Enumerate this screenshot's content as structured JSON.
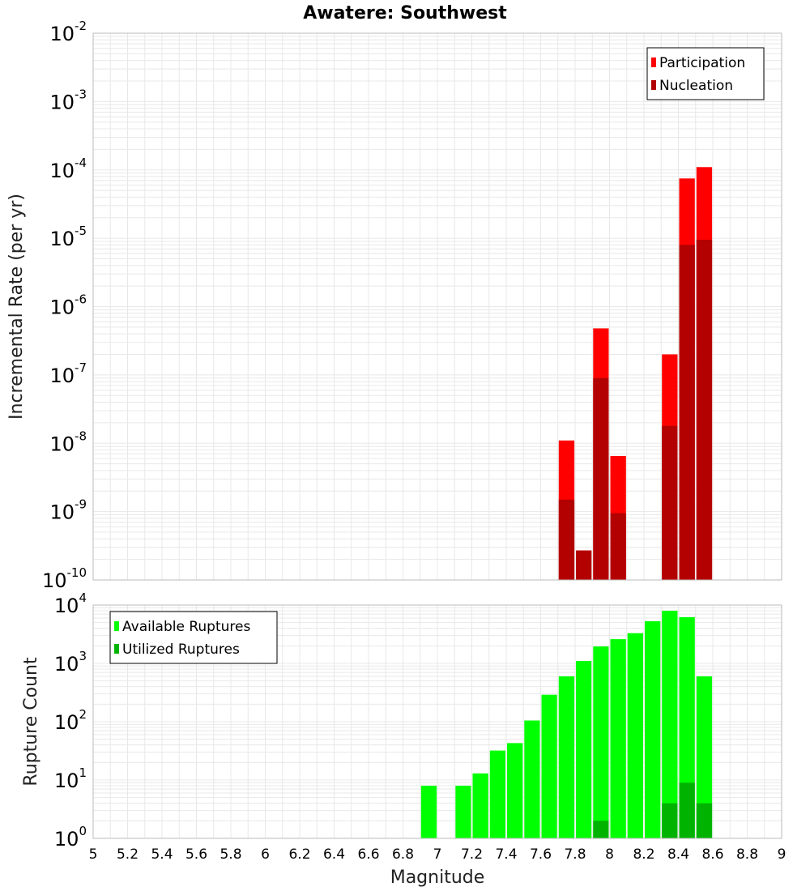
{
  "title": "Awatere: Southwest",
  "colors": {
    "participation": "#ff0000",
    "nucleation": "#b30000",
    "available": "#00ff00",
    "utilized": "#00b300",
    "grid": "#e8e8e8",
    "frame": "#bbbbbb"
  },
  "chart_data": [
    {
      "type": "bar",
      "scale": "log",
      "ylabel": "Incremental Rate (per yr)",
      "xlabel": "",
      "xlim": [
        5,
        9
      ],
      "ylim_exp": [
        -10,
        -2
      ],
      "y_ticks": [
        {
          "base": "10",
          "exp": "-2"
        },
        {
          "base": "10",
          "exp": "-3"
        },
        {
          "base": "10",
          "exp": "-4"
        },
        {
          "base": "10",
          "exp": "-5"
        },
        {
          "base": "10",
          "exp": "-6"
        },
        {
          "base": "10",
          "exp": "-7"
        },
        {
          "base": "10",
          "exp": "-8"
        },
        {
          "base": "10",
          "exp": "-9"
        },
        {
          "base": "10",
          "exp": "-10"
        }
      ],
      "legend": {
        "position": "top-right",
        "entries": [
          "Participation",
          "Nucleation"
        ]
      },
      "bar_width": 0.1,
      "series": [
        {
          "name": "Participation",
          "x": [
            7.75,
            7.85,
            7.95,
            8.05,
            8.35,
            8.45,
            8.55
          ],
          "values": [
            1.1e-08,
            2.7e-10,
            4.8e-07,
            6.5e-09,
            2e-07,
            7.5e-05,
            0.00011
          ]
        },
        {
          "name": "Nucleation",
          "x": [
            7.75,
            7.85,
            7.95,
            8.05,
            8.35,
            8.45,
            8.55
          ],
          "values": [
            1.5e-09,
            2.7e-10,
            9e-08,
            9.5e-10,
            1.8e-08,
            8e-06,
            9.5e-06
          ]
        }
      ]
    },
    {
      "type": "bar",
      "scale": "log",
      "ylabel": "Rupture Count",
      "xlabel": "Magnitude",
      "xlim": [
        5,
        9
      ],
      "ylim_exp": [
        0,
        4
      ],
      "x_ticks": [
        "5",
        "5.2",
        "5.4",
        "5.6",
        "5.8",
        "6",
        "6.2",
        "6.4",
        "6.6",
        "6.8",
        "7",
        "7.2",
        "7.4",
        "7.6",
        "7.8",
        "8",
        "8.2",
        "8.4",
        "8.6",
        "8.8",
        "9"
      ],
      "y_ticks": [
        {
          "base": "10",
          "exp": "4"
        },
        {
          "base": "10",
          "exp": "3"
        },
        {
          "base": "10",
          "exp": "2"
        },
        {
          "base": "10",
          "exp": "1"
        },
        {
          "base": "10",
          "exp": "0"
        }
      ],
      "legend": {
        "position": "top-left",
        "entries": [
          "Available Ruptures",
          "Utilized Ruptures"
        ]
      },
      "bar_width": 0.1,
      "series": [
        {
          "name": "Available Ruptures",
          "x": [
            6.95,
            7.15,
            7.25,
            7.35,
            7.45,
            7.55,
            7.65,
            7.75,
            7.85,
            7.95,
            8.05,
            8.15,
            8.25,
            8.35,
            8.45,
            8.55
          ],
          "values": [
            8,
            8,
            13,
            32,
            43,
            105,
            290,
            600,
            1100,
            1950,
            2600,
            3300,
            5300,
            8000,
            6200,
            600
          ]
        },
        {
          "name": "Utilized Ruptures",
          "x": [
            7.75,
            7.85,
            7.95,
            8.05,
            8.35,
            8.45,
            8.55
          ],
          "values": [
            1,
            1,
            2,
            1,
            4,
            9,
            4
          ]
        }
      ]
    }
  ]
}
